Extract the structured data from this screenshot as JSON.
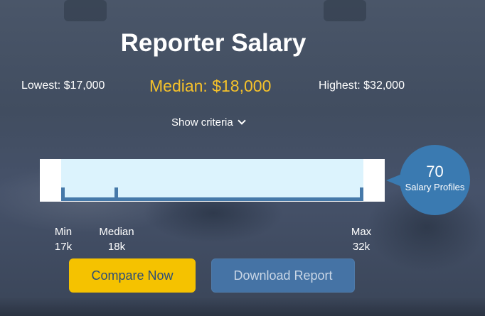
{
  "page": {
    "title": "Reporter Salary"
  },
  "stats": {
    "lowest": "Lowest: $17,000",
    "median": "Median: $18,000",
    "highest": "Highest: $32,000"
  },
  "criteria": {
    "label": "Show criteria",
    "icon": "chevron-down-icon"
  },
  "distribution": {
    "min_salary": 17000,
    "median_salary": 18000,
    "max_salary": 32000
  },
  "profiles": {
    "count": "70",
    "label": "Salary Profiles"
  },
  "markers": {
    "min": {
      "title": "Min",
      "value": "17k"
    },
    "median": {
      "title": "Median",
      "value": "18k"
    },
    "max": {
      "title": "Max",
      "value": "32k"
    }
  },
  "buttons": {
    "compare": "Compare Now",
    "download": "Download Report"
  },
  "colors": {
    "accent": "#f6c22a",
    "primary_blue": "#3a7ab1",
    "range_fill": "#dcf3fd",
    "compare_button": "#f5c200",
    "download_button": "#4573a5"
  }
}
